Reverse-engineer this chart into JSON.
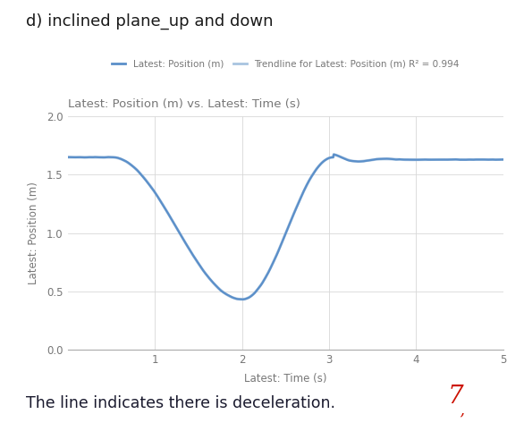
{
  "title_main": "d) inclined plane_up and down",
  "chart_title": "Latest: Position (m) vs. Latest: Time (s)",
  "xlabel": "Latest: Time (s)",
  "ylabel": "Latest: Position (m)",
  "xlim": [
    0,
    5
  ],
  "ylim": [
    0.0,
    2.0
  ],
  "xticks": [
    1,
    2,
    3,
    4,
    5
  ],
  "yticks": [
    0.0,
    0.5,
    1.0,
    1.5,
    2.0
  ],
  "legend_data_label": "Latest: Position (m)",
  "legend_trend_label": "Trendline for Latest: Position (m) R² = 0.994",
  "data_color": "#5b8fc9",
  "trend_color": "#a8c4e0",
  "background_color": "#ffffff",
  "grid_color": "#d8d8d8",
  "annotation": "The line indicates there is deceleration.",
  "annotation_color": "#1a1a2e",
  "title_color": "#1a1a1a",
  "chart_title_color": "#777777",
  "axis_label_color": "#777777",
  "tick_color": "#777777"
}
